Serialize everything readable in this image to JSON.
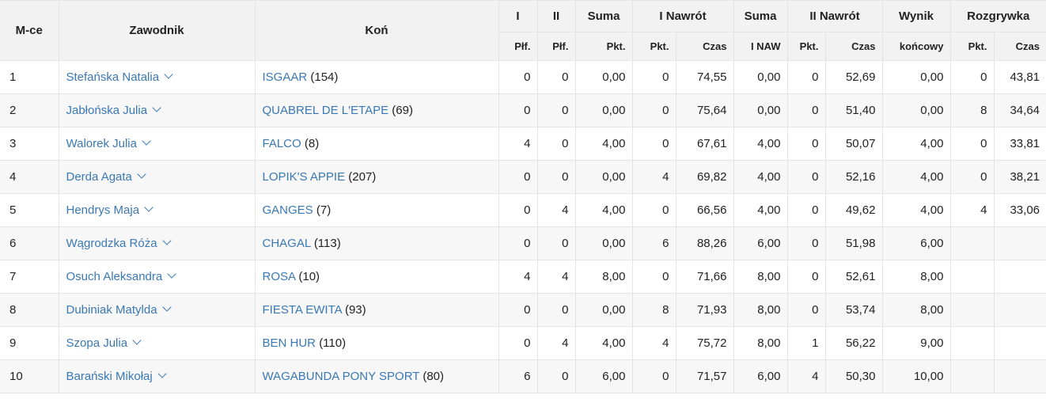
{
  "header": {
    "top": {
      "place": "M-ce",
      "rider": "Zawodnik",
      "horse": "Koń",
      "i": "I",
      "ii": "II",
      "suma": "Suma",
      "i_nawrot": "I Nawrót",
      "suma2": "Suma",
      "ii_nawrot": "II Nawrót",
      "wynik": "Wynik",
      "rozgrywka": "Rozgrywka"
    },
    "sub": {
      "i_pkt": "Płf.",
      "ii_pkt": "Płf.",
      "suma_pkt": "Pkt.",
      "n1_pkt": "Pkt.",
      "n1_czas": "Czas",
      "suma2_sub": "I NAW",
      "n2_pkt": "Pkt.",
      "n2_czas": "Czas",
      "wynik_sub": "końcowy",
      "r_pkt": "Pkt.",
      "r_czas": "Czas"
    }
  },
  "rows": [
    {
      "place": "1",
      "rider": "Stefańska Natalia",
      "horse": "ISGAAR",
      "horse_num": "(154)",
      "i": "0",
      "ii": "0",
      "suma": "0,00",
      "n1_pkt": "0",
      "n1_czas": "74,55",
      "suma2": "0,00",
      "n2_pkt": "0",
      "n2_czas": "52,69",
      "wynik": "0,00",
      "r_pkt": "0",
      "r_czas": "43,81"
    },
    {
      "place": "2",
      "rider": "Jabłońska Julia",
      "horse": "QUABREL DE L'ETAPE",
      "horse_num": "(69)",
      "i": "0",
      "ii": "0",
      "suma": "0,00",
      "n1_pkt": "0",
      "n1_czas": "75,64",
      "suma2": "0,00",
      "n2_pkt": "0",
      "n2_czas": "51,40",
      "wynik": "0,00",
      "r_pkt": "8",
      "r_czas": "34,64"
    },
    {
      "place": "3",
      "rider": "Walorek Julia",
      "horse": "FALCO",
      "horse_num": "(8)",
      "i": "4",
      "ii": "0",
      "suma": "4,00",
      "n1_pkt": "0",
      "n1_czas": "67,61",
      "suma2": "4,00",
      "n2_pkt": "0",
      "n2_czas": "50,07",
      "wynik": "4,00",
      "r_pkt": "0",
      "r_czas": "33,81"
    },
    {
      "place": "4",
      "rider": "Derda Agata",
      "horse": "LOPIK'S APPIE",
      "horse_num": "(207)",
      "i": "0",
      "ii": "0",
      "suma": "0,00",
      "n1_pkt": "4",
      "n1_czas": "69,82",
      "suma2": "4,00",
      "n2_pkt": "0",
      "n2_czas": "52,16",
      "wynik": "4,00",
      "r_pkt": "0",
      "r_czas": "38,21"
    },
    {
      "place": "5",
      "rider": "Hendrys Maja",
      "horse": "GANGES",
      "horse_num": "(7)",
      "i": "0",
      "ii": "4",
      "suma": "4,00",
      "n1_pkt": "0",
      "n1_czas": "66,56",
      "suma2": "4,00",
      "n2_pkt": "0",
      "n2_czas": "49,62",
      "wynik": "4,00",
      "r_pkt": "4",
      "r_czas": "33,06"
    },
    {
      "place": "6",
      "rider": "Wągrodzka Róża",
      "horse": "CHAGAL",
      "horse_num": "(113)",
      "i": "0",
      "ii": "0",
      "suma": "0,00",
      "n1_pkt": "6",
      "n1_czas": "88,26",
      "suma2": "6,00",
      "n2_pkt": "0",
      "n2_czas": "51,98",
      "wynik": "6,00",
      "r_pkt": "",
      "r_czas": ""
    },
    {
      "place": "7",
      "rider": "Osuch Aleksandra",
      "horse": "ROSA",
      "horse_num": "(10)",
      "i": "4",
      "ii": "4",
      "suma": "8,00",
      "n1_pkt": "0",
      "n1_czas": "71,66",
      "suma2": "8,00",
      "n2_pkt": "0",
      "n2_czas": "52,61",
      "wynik": "8,00",
      "r_pkt": "",
      "r_czas": ""
    },
    {
      "place": "8",
      "rider": "Dubiniak Matylda",
      "horse": "FIESTA EWITA",
      "horse_num": "(93)",
      "i": "0",
      "ii": "0",
      "suma": "0,00",
      "n1_pkt": "8",
      "n1_czas": "71,93",
      "suma2": "8,00",
      "n2_pkt": "0",
      "n2_czas": "53,74",
      "wynik": "8,00",
      "r_pkt": "",
      "r_czas": ""
    },
    {
      "place": "9",
      "rider": "Szopa Julia",
      "horse": "BEN HUR",
      "horse_num": "(110)",
      "i": "0",
      "ii": "4",
      "suma": "4,00",
      "n1_pkt": "4",
      "n1_czas": "75,72",
      "suma2": "8,00",
      "n2_pkt": "1",
      "n2_czas": "56,22",
      "wynik": "9,00",
      "r_pkt": "",
      "r_czas": ""
    },
    {
      "place": "10",
      "rider": "Barański Mikołaj",
      "horse": "WAGABUNDA PONY SPORT",
      "horse_num": "(80)",
      "i": "6",
      "ii": "0",
      "suma": "6,00",
      "n1_pkt": "0",
      "n1_czas": "71,57",
      "suma2": "6,00",
      "n2_pkt": "4",
      "n2_czas": "50,30",
      "wynik": "10,00",
      "r_pkt": "",
      "r_czas": ""
    }
  ],
  "icons": {
    "rider_expand": "chevron-down-icon"
  },
  "colors": {
    "link": "#3a78b4",
    "header_bg": "#f2f2f2",
    "stripe_bg": "#f7f7f7",
    "border": "#e4e4e4"
  }
}
